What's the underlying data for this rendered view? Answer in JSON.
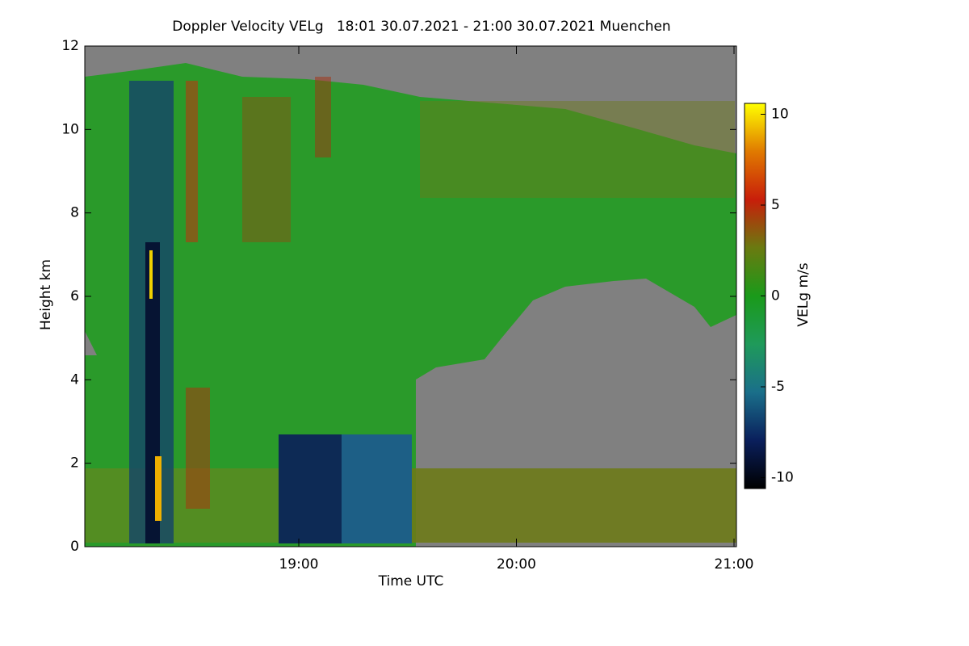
{
  "chart_data": {
    "type": "heatmap",
    "title": "Doppler Velocity VELg   18:01 30.07.2021 - 21:00 30.07.2021 Muenchen",
    "x_label": "Time UTC",
    "y_label": "Height km",
    "xlim": [
      18.0167,
      21
    ],
    "xticks": [
      {
        "value": 19,
        "label": "19:00"
      },
      {
        "value": 20,
        "label": "20:00"
      },
      {
        "value": 21,
        "label": "21:00"
      }
    ],
    "ylim": [
      0,
      12
    ],
    "yticks": [
      0,
      2,
      4,
      6,
      8,
      10,
      12
    ],
    "colorbar_label": "VELg m/s",
    "zlim": [
      -10.6,
      10.6
    ],
    "zticks": [
      -10,
      -5,
      0,
      5,
      10
    ],
    "colormap": [
      "#000000",
      "#0a1f5c",
      "#1a6f8a",
      "#1f9a5a",
      "#1a9a1a",
      "#6a7a10",
      "#c81e0a",
      "#e07a00",
      "#ffff00"
    ]
  }
}
